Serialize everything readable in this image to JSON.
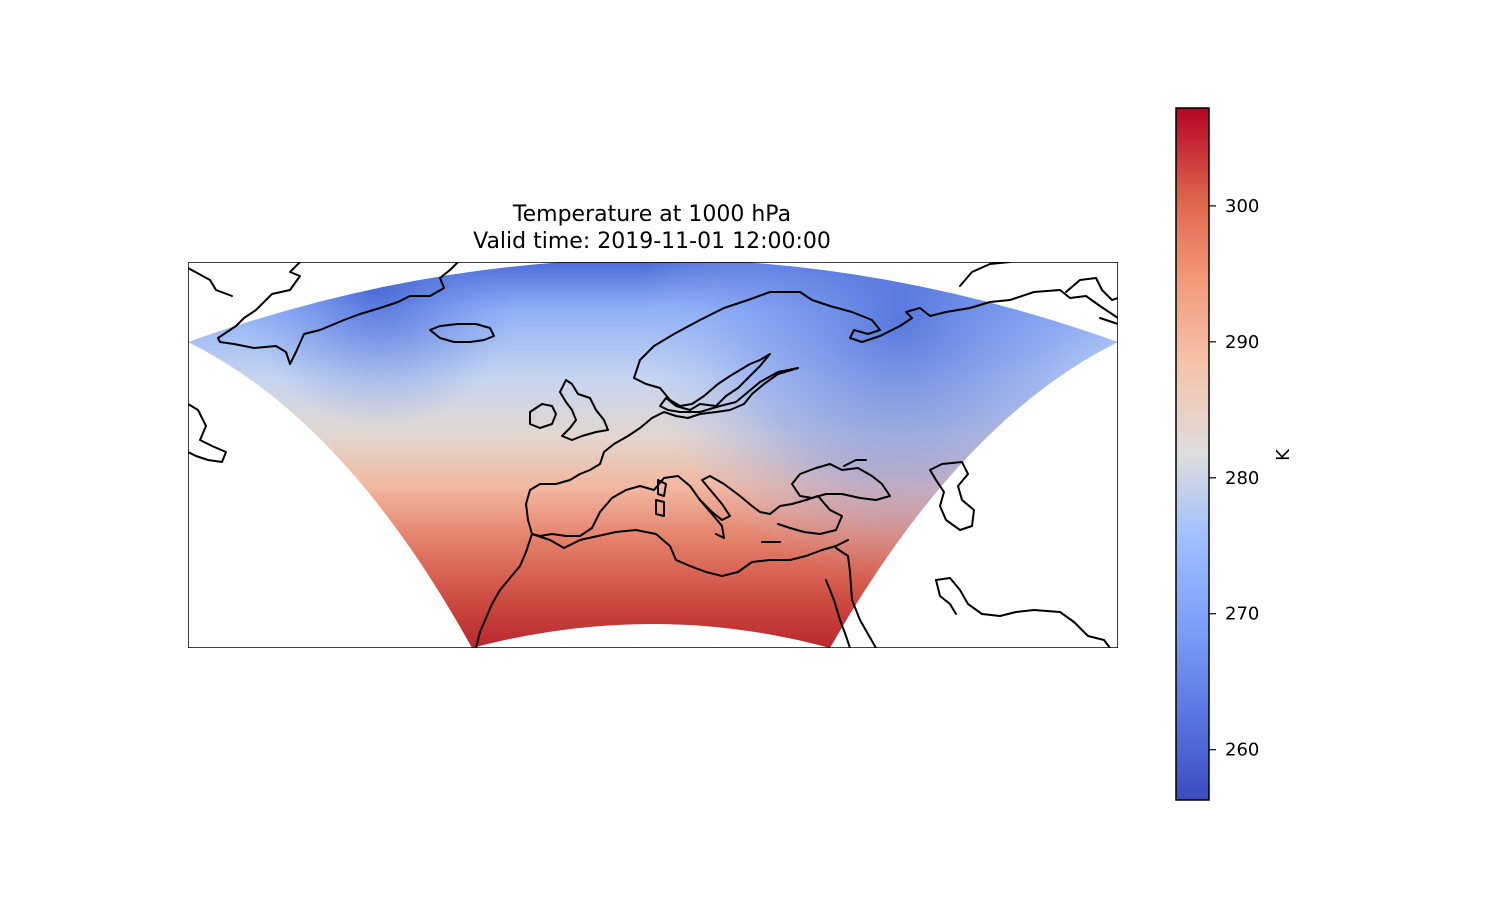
{
  "figure": {
    "title_line1": "Temperature at 1000 hPa",
    "title_line2": "Valid time: 2019-11-01 12:00:00"
  },
  "colorbar": {
    "label": "K",
    "colormap": "coolwarm",
    "min": 256.3,
    "max": 307.2,
    "ticks": [
      260,
      270,
      280,
      290,
      300
    ],
    "tick_labels": [
      "260",
      "270",
      "280",
      "290",
      "300"
    ],
    "color_low": "#3b4cc0",
    "color_mid": "#dddddd",
    "color_high": "#b40426"
  },
  "map": {
    "projection": "Lambert conformal (cone-shaped domain)",
    "region": "Europe, North Atlantic and North Africa",
    "field": "air temperature at 1000 hPa",
    "coastlines": true,
    "cold_color": "#5a78e0",
    "warm_color": "#c8363a"
  }
}
